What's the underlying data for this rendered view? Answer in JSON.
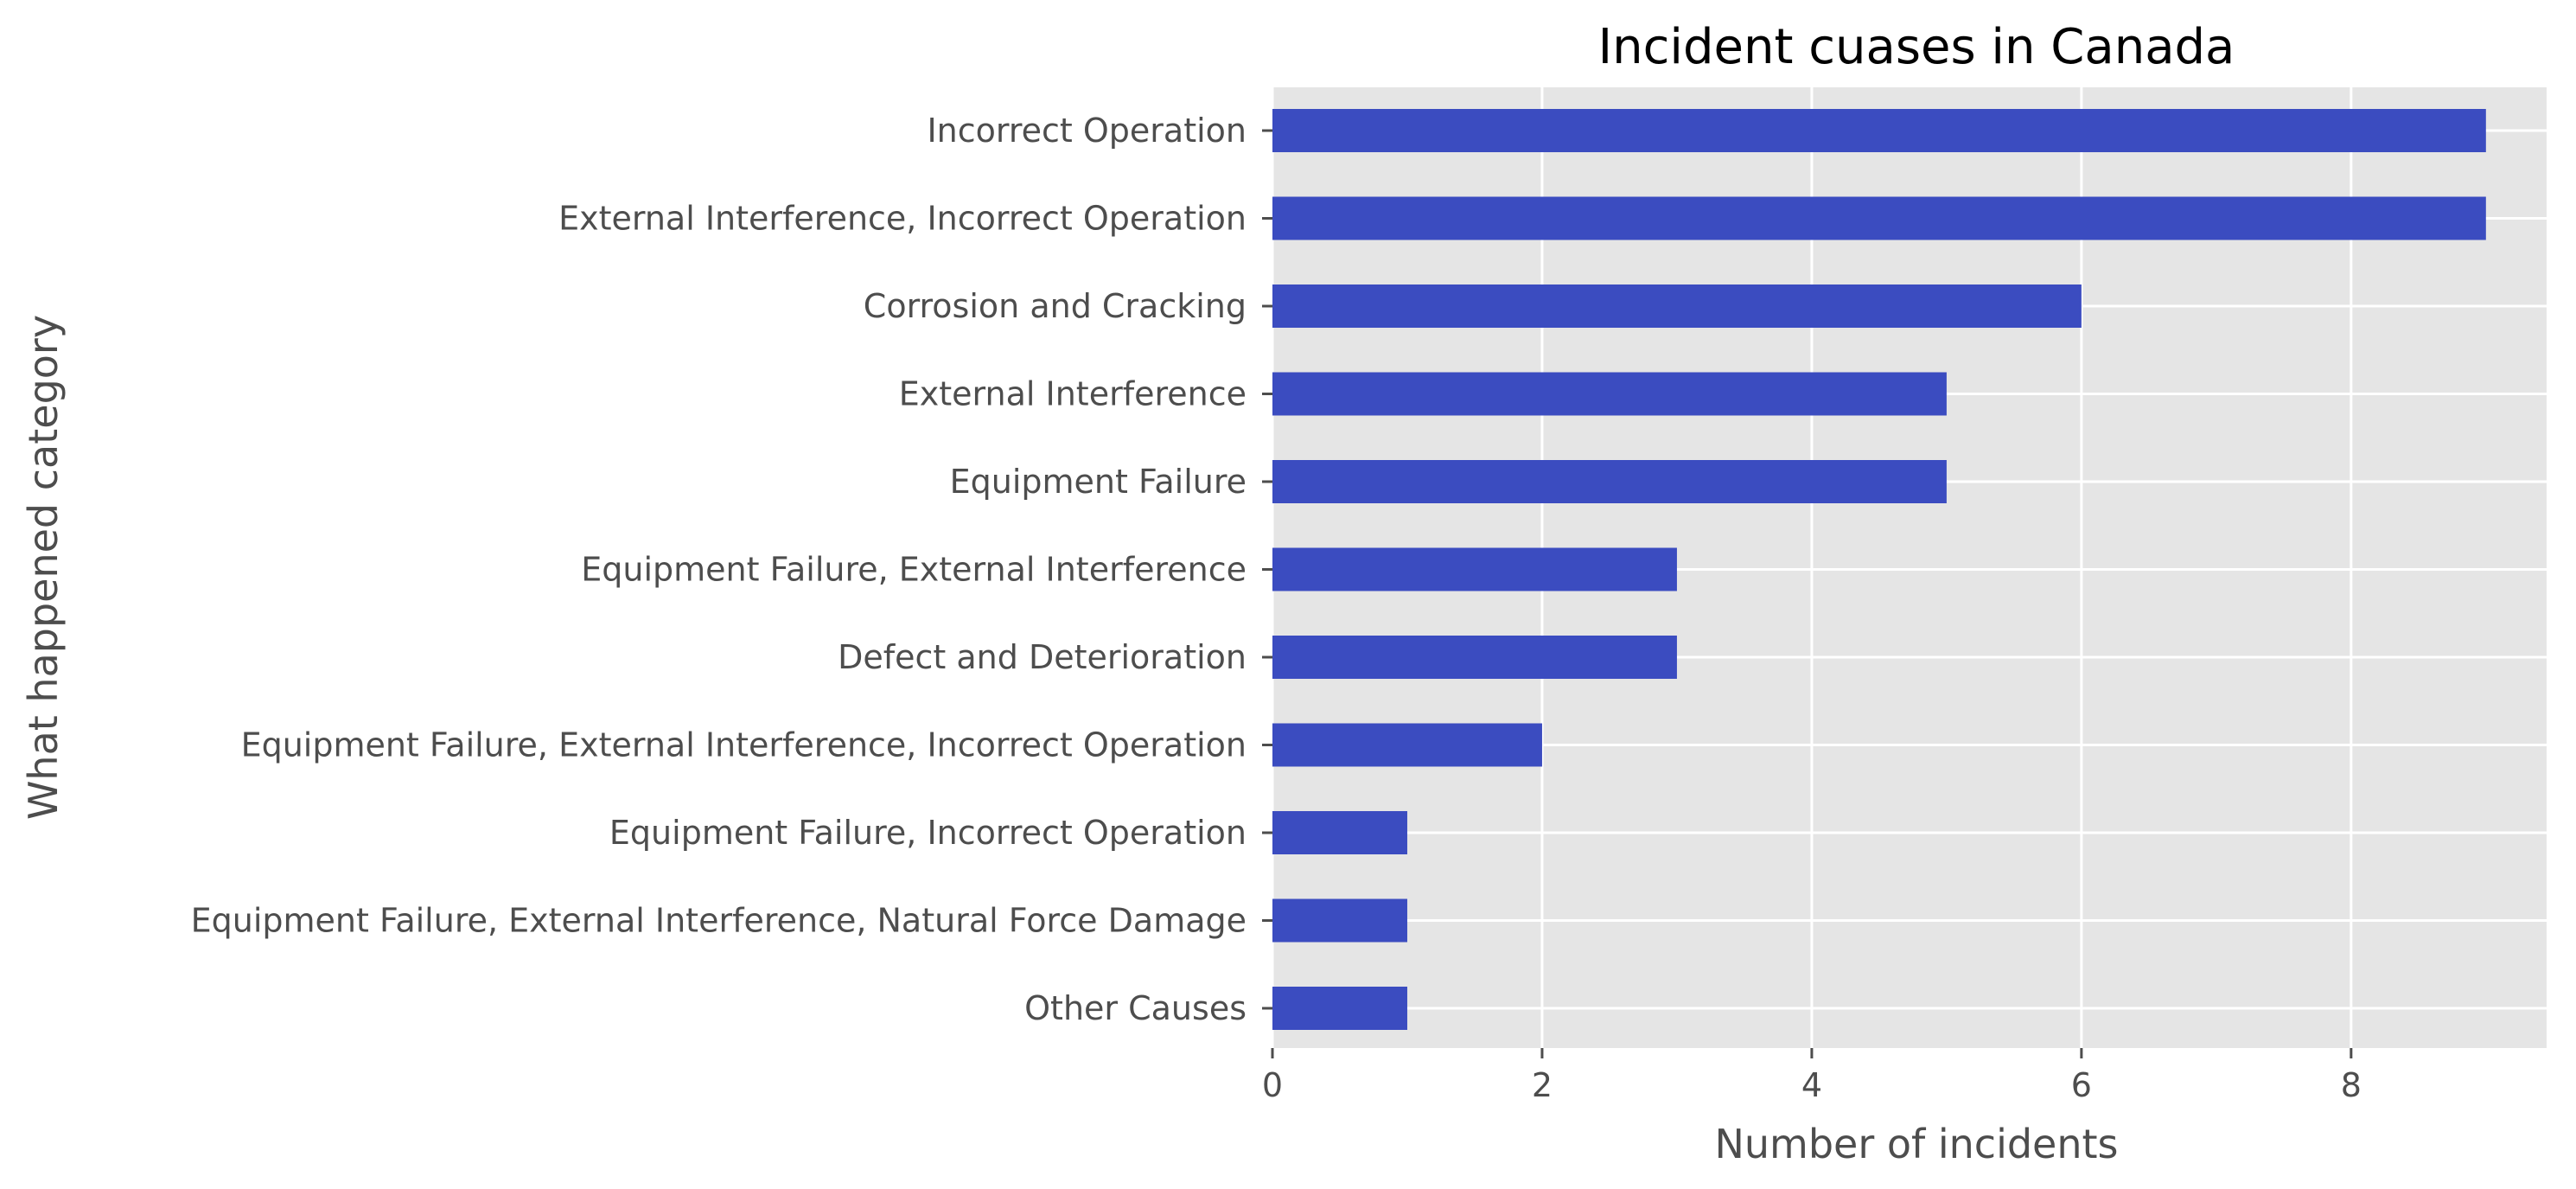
{
  "chart_data": {
    "type": "bar",
    "orientation": "horizontal",
    "title": "Incident cuases in Canada",
    "xlabel": "Number of incidents",
    "ylabel": "What happened category",
    "categories": [
      "Incorrect Operation",
      "External Interference, Incorrect Operation",
      "Corrosion and Cracking",
      "External Interference",
      "Equipment Failure",
      "Equipment Failure, External Interference",
      "Defect and Deterioration",
      "Equipment Failure, External Interference, Incorrect Operation",
      "Equipment Failure, Incorrect Operation",
      "Equipment Failure, External Interference, Natural Force Damage",
      "Other Causes"
    ],
    "values": [
      9,
      9,
      6,
      5,
      5,
      3,
      3,
      2,
      1,
      1,
      1
    ],
    "xlim": [
      0,
      9.45
    ],
    "xticks": [
      0,
      2,
      4,
      6,
      8
    ],
    "grid": true,
    "legend": "none",
    "colors": {
      "bar": "#3b4cc0",
      "plot_background": "#e5e5e5",
      "grid": "#ffffff",
      "tick_text": "#4d4d4d",
      "title_text": "#000000"
    }
  }
}
